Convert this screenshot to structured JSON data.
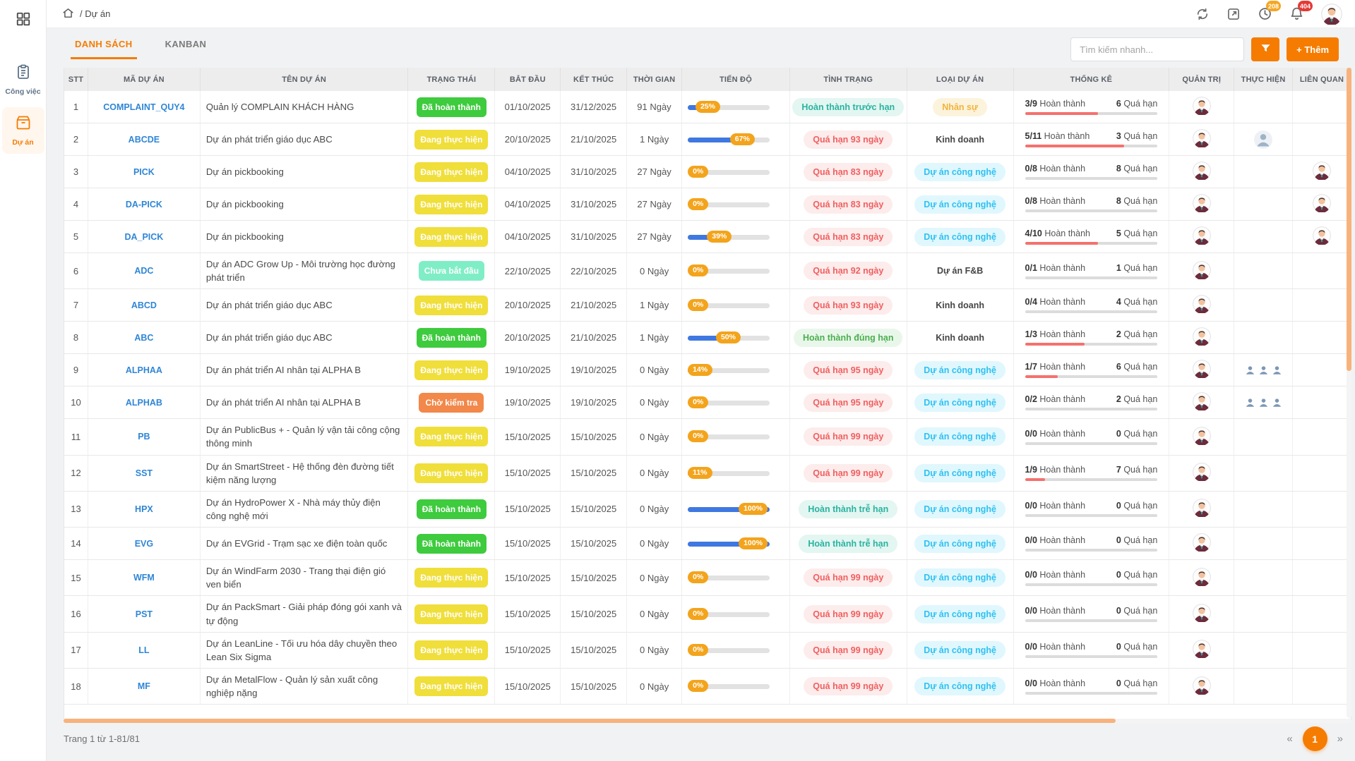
{
  "theme": {
    "accent": "#f57c00",
    "link_blue": "#2f86d6",
    "progress_blue": "#3f78e0",
    "progress_pill_orange": "#f3a41c",
    "status_done_green": "#3ecb3e",
    "status_doing_yellow": "#f0de3a",
    "status_notstarted_mint": "#7feec6",
    "status_checking_orange": "#f2884a",
    "overdue_red": "#f05f5f",
    "stats_bar_red": "#f4716d",
    "badge_orange": "#f5a623",
    "badge_red": "#e53935"
  },
  "sidebar": {
    "items": [
      {
        "label": "Công việc",
        "icon": "clipboard-icon",
        "active": false
      },
      {
        "label": "Dự án",
        "icon": "box-icon",
        "active": true
      }
    ]
  },
  "topbar": {
    "breadcrumb": "/ Dự án",
    "clock_badge": "208",
    "bell_badge": "404"
  },
  "toolbar": {
    "tabs": [
      {
        "label": "DANH SÁCH",
        "active": true
      },
      {
        "label": "KANBAN",
        "active": false
      }
    ],
    "search_placeholder": "Tìm kiếm nhanh...",
    "add_label": "+ Thêm"
  },
  "table": {
    "columns": [
      "STT",
      "MÃ DỰ ÁN",
      "TÊN DỰ ÁN",
      "TRẠNG THÁI",
      "BẮT ĐẦU",
      "KẾT THÚC",
      "THỜI GIAN",
      "TIẾN ĐỘ",
      "TÌNH TRẠNG",
      "LOẠI DỰ ÁN",
      "THỐNG KÊ",
      "QUẢN TRỊ",
      "THỰC HIỆN",
      "LIÊN QUAN"
    ],
    "stats_done_label": "Hoàn thành",
    "stats_overdue_label": "Quá hạn",
    "rows": [
      {
        "stt": "1",
        "code": "COMPLAINT_QUY4",
        "name": "Quản lý COMPLAIN KHÁCH HÀNG",
        "status": {
          "label": "Đã hoàn thành",
          "key": "done"
        },
        "start": "01/10/2025",
        "end": "31/12/2025",
        "duration": "91 Ngày",
        "progress": 25,
        "progress_label": "25%",
        "condition": {
          "label": "Hoàn thành trước hạn",
          "tone": "teal"
        },
        "type": {
          "label": "Nhân sự",
          "tone": "orange"
        },
        "stats": {
          "done": "3/9",
          "overdue": "6",
          "bar": 55
        },
        "admin": true,
        "exec": "",
        "related": false
      },
      {
        "stt": "2",
        "code": "ABCDE",
        "name": "Dự án phát triển giáo dục ABC",
        "status": {
          "label": "Đang thực hiện",
          "key": "doing"
        },
        "start": "20/10/2025",
        "end": "21/10/2025",
        "duration": "1 Ngày",
        "progress": 67,
        "progress_label": "67%",
        "condition": {
          "label": "Quá hạn 93 ngày",
          "tone": "red"
        },
        "type": {
          "label": "Kinh doanh",
          "tone": "plain"
        },
        "stats": {
          "done": "5/11",
          "overdue": "3",
          "bar": 75
        },
        "admin": true,
        "exec": "single",
        "related": false
      },
      {
        "stt": "3",
        "code": "PICK",
        "name": "Dự án pickbooking",
        "status": {
          "label": "Đang thực hiện",
          "key": "doing"
        },
        "start": "04/10/2025",
        "end": "31/10/2025",
        "duration": "27 Ngày",
        "progress": 0,
        "progress_label": "0%",
        "condition": {
          "label": "Quá hạn 83 ngày",
          "tone": "red"
        },
        "type": {
          "label": "Dự án công nghệ",
          "tone": "cyan"
        },
        "stats": {
          "done": "0/8",
          "overdue": "8",
          "bar": 0
        },
        "admin": true,
        "exec": "",
        "related": true
      },
      {
        "stt": "4",
        "code": "DA-PICK",
        "name": "Dự án pickbooking",
        "status": {
          "label": "Đang thực hiện",
          "key": "doing"
        },
        "start": "04/10/2025",
        "end": "31/10/2025",
        "duration": "27 Ngày",
        "progress": 0,
        "progress_label": "0%",
        "condition": {
          "label": "Quá hạn 83 ngày",
          "tone": "red"
        },
        "type": {
          "label": "Dự án công nghệ",
          "tone": "cyan"
        },
        "stats": {
          "done": "0/8",
          "overdue": "8",
          "bar": 0
        },
        "admin": true,
        "exec": "",
        "related": true
      },
      {
        "stt": "5",
        "code": "DA_PICK",
        "name": "Dự án pickbooking",
        "status": {
          "label": "Đang thực hiện",
          "key": "doing"
        },
        "start": "04/10/2025",
        "end": "31/10/2025",
        "duration": "27 Ngày",
        "progress": 39,
        "progress_label": "39%",
        "condition": {
          "label": "Quá hạn 83 ngày",
          "tone": "red"
        },
        "type": {
          "label": "Dự án công nghệ",
          "tone": "cyan"
        },
        "stats": {
          "done": "4/10",
          "overdue": "5",
          "bar": 55
        },
        "admin": true,
        "exec": "",
        "related": true
      },
      {
        "stt": "6",
        "code": "ADC",
        "name": "Dự án ADC Grow Up - Môi trường học đường phát triển",
        "status": {
          "label": "Chưa bắt đầu",
          "key": "notstarted"
        },
        "start": "22/10/2025",
        "end": "22/10/2025",
        "duration": "0 Ngày",
        "progress": 0,
        "progress_label": "0%",
        "condition": {
          "label": "Quá hạn 92 ngày",
          "tone": "red"
        },
        "type": {
          "label": "Dự án F&B",
          "tone": "plain"
        },
        "stats": {
          "done": "0/1",
          "overdue": "1",
          "bar": 0
        },
        "admin": true,
        "exec": "",
        "related": false
      },
      {
        "stt": "7",
        "code": "ABCD",
        "name": "Dự án phát triển giáo dục ABC",
        "status": {
          "label": "Đang thực hiện",
          "key": "doing"
        },
        "start": "20/10/2025",
        "end": "21/10/2025",
        "duration": "1 Ngày",
        "progress": 0,
        "progress_label": "0%",
        "condition": {
          "label": "Quá hạn 93 ngày",
          "tone": "red"
        },
        "type": {
          "label": "Kinh doanh",
          "tone": "plain"
        },
        "stats": {
          "done": "0/4",
          "overdue": "4",
          "bar": 0
        },
        "admin": true,
        "exec": "",
        "related": false
      },
      {
        "stt": "8",
        "code": "ABC",
        "name": "Dự án phát triển giáo dục ABC",
        "status": {
          "label": "Đã hoàn thành",
          "key": "done"
        },
        "start": "20/10/2025",
        "end": "21/10/2025",
        "duration": "1 Ngày",
        "progress": 50,
        "progress_label": "50%",
        "condition": {
          "label": "Hoàn thành đúng hạn",
          "tone": "green"
        },
        "type": {
          "label": "Kinh doanh",
          "tone": "plain"
        },
        "stats": {
          "done": "1/3",
          "overdue": "2",
          "bar": 45
        },
        "admin": true,
        "exec": "",
        "related": false
      },
      {
        "stt": "9",
        "code": "ALPHAA",
        "name": "Dự án phát triển AI nhân tại ALPHA B",
        "status": {
          "label": "Đang thực hiện",
          "key": "doing"
        },
        "start": "19/10/2025",
        "end": "19/10/2025",
        "duration": "0 Ngày",
        "progress": 14,
        "progress_label": "14%",
        "condition": {
          "label": "Quá hạn 95 ngày",
          "tone": "red"
        },
        "type": {
          "label": "Dự án công nghệ",
          "tone": "cyan"
        },
        "stats": {
          "done": "1/7",
          "overdue": "6",
          "bar": 25
        },
        "admin": true,
        "exec": "group",
        "related": false
      },
      {
        "stt": "10",
        "code": "ALPHAB",
        "name": "Dự án phát triển AI nhân tại ALPHA B",
        "status": {
          "label": "Chờ kiểm tra",
          "key": "checking"
        },
        "start": "19/10/2025",
        "end": "19/10/2025",
        "duration": "0 Ngày",
        "progress": 0,
        "progress_label": "0%",
        "condition": {
          "label": "Quá hạn 95 ngày",
          "tone": "red"
        },
        "type": {
          "label": "Dự án công nghệ",
          "tone": "cyan"
        },
        "stats": {
          "done": "0/2",
          "overdue": "2",
          "bar": 0
        },
        "admin": true,
        "exec": "group",
        "related": false
      },
      {
        "stt": "11",
        "code": "PB",
        "name": "Dự án PublicBus + - Quản lý vận tải công cộng thông minh",
        "status": {
          "label": "Đang thực hiện",
          "key": "doing"
        },
        "start": "15/10/2025",
        "end": "15/10/2025",
        "duration": "0 Ngày",
        "progress": 0,
        "progress_label": "0%",
        "condition": {
          "label": "Quá hạn 99 ngày",
          "tone": "red"
        },
        "type": {
          "label": "Dự án công nghệ",
          "tone": "cyan"
        },
        "stats": {
          "done": "0/0",
          "overdue": "0",
          "bar": 0
        },
        "admin": true,
        "exec": "",
        "related": false
      },
      {
        "stt": "12",
        "code": "SST",
        "name": "Dự án SmartStreet - Hệ thống đèn đường tiết kiệm năng lượng",
        "status": {
          "label": "Đang thực hiện",
          "key": "doing"
        },
        "start": "15/10/2025",
        "end": "15/10/2025",
        "duration": "0 Ngày",
        "progress": 11,
        "progress_label": "11%",
        "condition": {
          "label": "Quá hạn 99 ngày",
          "tone": "red"
        },
        "type": {
          "label": "Dự án công nghệ",
          "tone": "cyan"
        },
        "stats": {
          "done": "1/9",
          "overdue": "7",
          "bar": 15
        },
        "admin": true,
        "exec": "",
        "related": false
      },
      {
        "stt": "13",
        "code": "HPX",
        "name": "Dự án HydroPower X - Nhà máy thủy điện công nghệ mới",
        "status": {
          "label": "Đã hoàn thành",
          "key": "done"
        },
        "start": "15/10/2025",
        "end": "15/10/2025",
        "duration": "0 Ngày",
        "progress": 100,
        "progress_label": "100%",
        "condition": {
          "label": "Hoàn thành trễ hạn",
          "tone": "teal"
        },
        "type": {
          "label": "Dự án công nghệ",
          "tone": "cyan"
        },
        "stats": {
          "done": "0/0",
          "overdue": "0",
          "bar": 0
        },
        "admin": true,
        "exec": "",
        "related": false
      },
      {
        "stt": "14",
        "code": "EVG",
        "name": "Dự án EVGrid - Trạm sạc xe điện toàn quốc",
        "status": {
          "label": "Đã hoàn thành",
          "key": "done"
        },
        "start": "15/10/2025",
        "end": "15/10/2025",
        "duration": "0 Ngày",
        "progress": 100,
        "progress_label": "100%",
        "condition": {
          "label": "Hoàn thành trễ hạn",
          "tone": "teal"
        },
        "type": {
          "label": "Dự án công nghệ",
          "tone": "cyan"
        },
        "stats": {
          "done": "0/0",
          "overdue": "0",
          "bar": 0
        },
        "admin": true,
        "exec": "",
        "related": false
      },
      {
        "stt": "15",
        "code": "WFM",
        "name": "Dự án WindFarm 2030 - Trang thại điện gió ven biển",
        "status": {
          "label": "Đang thực hiện",
          "key": "doing"
        },
        "start": "15/10/2025",
        "end": "15/10/2025",
        "duration": "0 Ngày",
        "progress": 0,
        "progress_label": "0%",
        "condition": {
          "label": "Quá hạn 99 ngày",
          "tone": "red"
        },
        "type": {
          "label": "Dự án công nghệ",
          "tone": "cyan"
        },
        "stats": {
          "done": "0/0",
          "overdue": "0",
          "bar": 0
        },
        "admin": true,
        "exec": "",
        "related": false
      },
      {
        "stt": "16",
        "code": "PST",
        "name": "Dự án PackSmart - Giải pháp đóng gói xanh và tự động",
        "status": {
          "label": "Đang thực hiện",
          "key": "doing"
        },
        "start": "15/10/2025",
        "end": "15/10/2025",
        "duration": "0 Ngày",
        "progress": 0,
        "progress_label": "0%",
        "condition": {
          "label": "Quá hạn 99 ngày",
          "tone": "red"
        },
        "type": {
          "label": "Dự án công nghệ",
          "tone": "cyan"
        },
        "stats": {
          "done": "0/0",
          "overdue": "0",
          "bar": 0
        },
        "admin": true,
        "exec": "",
        "related": false
      },
      {
        "stt": "17",
        "code": "LL",
        "name": "Dự án LeanLine - Tối ưu hóa dây chuyền theo Lean Six Sigma",
        "status": {
          "label": "Đang thực hiện",
          "key": "doing"
        },
        "start": "15/10/2025",
        "end": "15/10/2025",
        "duration": "0 Ngày",
        "progress": 0,
        "progress_label": "0%",
        "condition": {
          "label": "Quá hạn 99 ngày",
          "tone": "red"
        },
        "type": {
          "label": "Dự án công nghệ",
          "tone": "cyan"
        },
        "stats": {
          "done": "0/0",
          "overdue": "0",
          "bar": 0
        },
        "admin": true,
        "exec": "",
        "related": false
      },
      {
        "stt": "18",
        "code": "MF",
        "name": "Dự án MetalFlow - Quản lý sản xuất công nghiệp nặng",
        "status": {
          "label": "Đang thực hiện",
          "key": "doing"
        },
        "start": "15/10/2025",
        "end": "15/10/2025",
        "duration": "0 Ngày",
        "progress": 0,
        "progress_label": "0%",
        "condition": {
          "label": "Quá hạn 99 ngày",
          "tone": "red"
        },
        "type": {
          "label": "Dự án công nghệ",
          "tone": "cyan"
        },
        "stats": {
          "done": "0/0",
          "overdue": "0",
          "bar": 0
        },
        "admin": true,
        "exec": "",
        "related": false
      }
    ]
  },
  "footer": {
    "page_info": "Trang 1 từ 1-81/81",
    "prev_icon": "«",
    "page": "1",
    "next_icon": "»"
  }
}
